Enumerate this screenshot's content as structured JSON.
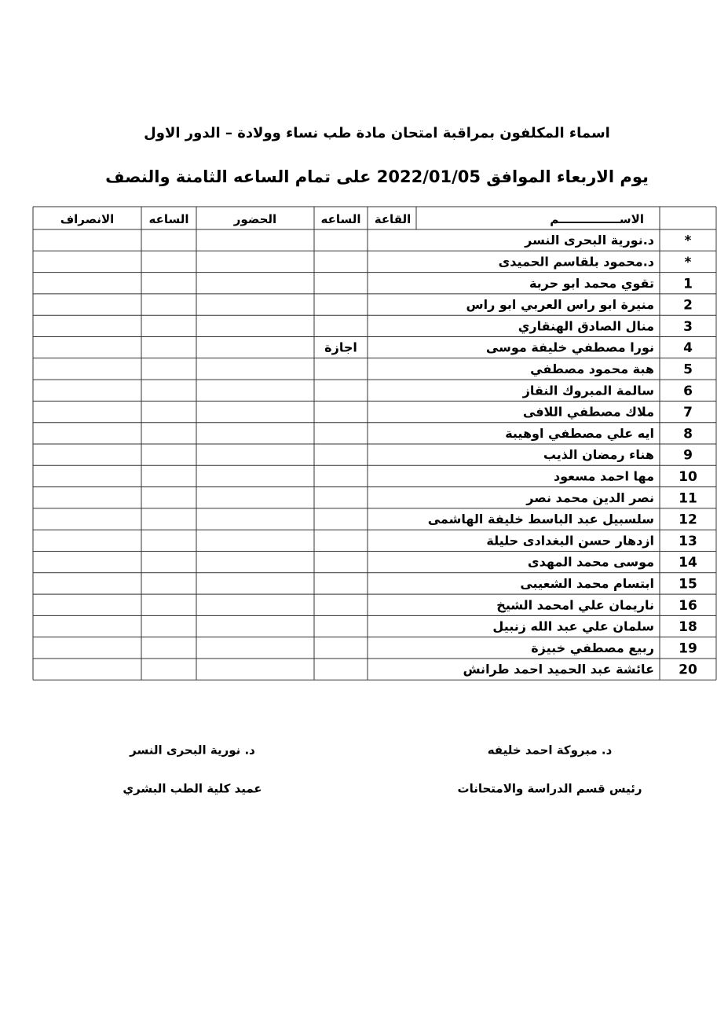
{
  "header": {
    "title": "اسماء المكلفون بمراقبة امتحان مادة طب نساء وولادة  –  الدور الاول",
    "subtitle": "يوم الاربعاء الموافق 2022/01/05 على تمام الساعه الثامنة والنصف"
  },
  "table": {
    "columns": {
      "name": "الاســـــــــــــــم",
      "hall": "القاعة",
      "time_in": "الساعه",
      "attendance": "الحضور",
      "time_out": "الساعه",
      "leave": "الانصراف"
    },
    "rows": [
      {
        "num": "*",
        "name": "د.نورية البحرى النسر"
      },
      {
        "num": "*",
        "name": "د.محمود بلقاسم الحميدى"
      },
      {
        "num": "1",
        "name": "تقوي محمد ابو حربة"
      },
      {
        "num": "2",
        "name": "منيرة ابو راس العربي ابو راس"
      },
      {
        "num": "3",
        "name": "منال الصادق الهنقاري"
      },
      {
        "num": "4",
        "name": "نورا مصطفي خليفة موسى",
        "note": "اجازة"
      },
      {
        "num": "5",
        "name": "هبة محمود مصطفي"
      },
      {
        "num": "6",
        "name": "سالمة المبروك  النقاز"
      },
      {
        "num": "7",
        "name": "ملاك مصطفي اللافى"
      },
      {
        "num": "8",
        "name": "ايه علي مصطفي اوهيبة"
      },
      {
        "num": "9",
        "name": "هناء رمضان الذيب"
      },
      {
        "num": "10",
        "name": "مها احمد مسعود"
      },
      {
        "num": "11",
        "name": "نصر الدين محمد نصر"
      },
      {
        "num": "12",
        "name": "سلسبيل عبد الباسط خليفة الهاشمى"
      },
      {
        "num": "13",
        "name": "ازدهار حسن البغدادى حليلة"
      },
      {
        "num": "14",
        "name": "موسى محمد المهدى"
      },
      {
        "num": "15",
        "name": "ابتسام محمد الشعيبى"
      },
      {
        "num": "16",
        "name": "ناريمان علي امحمد الشيخ"
      },
      {
        "num": "18",
        "name": "سلمان علي عبد الله زنبيل"
      },
      {
        "num": "19",
        "name": "ربيع مصطفي خبيزة"
      },
      {
        "num": "20",
        "name": "عائشة عبد الحميد احمد طرانش"
      }
    ]
  },
  "signatures": [
    {
      "name": "د.  نورية البحرى النسر",
      "role": "عميد كلية الطب البشري"
    },
    {
      "name": "د.  مبروكة احمد خليفه",
      "role": "رئيس قسم الدراسة والامتحانات"
    }
  ]
}
